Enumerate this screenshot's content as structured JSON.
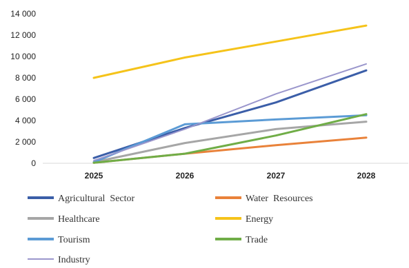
{
  "chart_data": {
    "type": "line",
    "title": "",
    "xlabel": "",
    "ylabel": "",
    "x": [
      "2025",
      "2026",
      "2027",
      "2028"
    ],
    "ylim": [
      0,
      14000
    ],
    "yticks": [
      "0",
      "2 000",
      "4 000",
      "6 000",
      "8 000",
      "10 000",
      "12 000",
      "14 000"
    ],
    "grid": false,
    "legend_position": "bottom",
    "series": [
      {
        "name": "Agricultural  Sector",
        "color": "#3b5ea8",
        "values": [
          500,
          3300,
          5700,
          8700
        ]
      },
      {
        "name": "Water  Resources",
        "color": "#e9823a",
        "values": [
          50,
          900,
          1700,
          2400
        ]
      },
      {
        "name": "Healthcare",
        "color": "#a6a6a6",
        "values": [
          100,
          1900,
          3200,
          3900
        ]
      },
      {
        "name": "Energy",
        "color": "#f5c31a",
        "values": [
          8000,
          9900,
          11400,
          12900
        ]
      },
      {
        "name": "Tourism",
        "color": "#5b9bd5",
        "values": [
          100,
          3650,
          4100,
          4500
        ]
      },
      {
        "name": "Trade",
        "color": "#70ad47",
        "values": [
          50,
          900,
          2600,
          4600
        ]
      },
      {
        "name": "Industry",
        "color": "#9a96cc",
        "values": [
          250,
          3200,
          6500,
          9300
        ]
      }
    ]
  }
}
